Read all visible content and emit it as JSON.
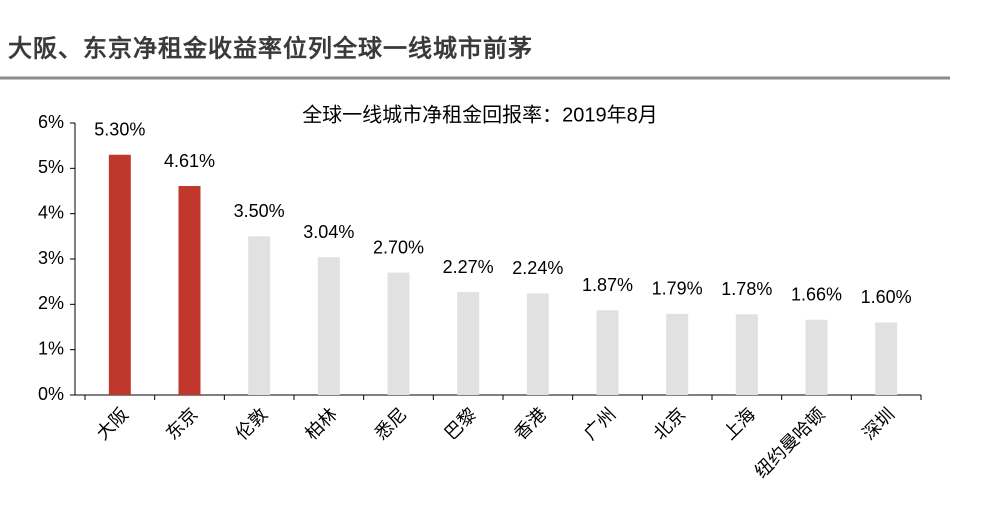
{
  "header": {
    "title": "大阪、东京净租金收益率位列全球一线城市前茅"
  },
  "chart_data": {
    "type": "bar",
    "title": "全球一线城市净租金回报率：2019年8月",
    "categories": [
      "大阪",
      "东京",
      "伦敦",
      "柏林",
      "悉尼",
      "巴黎",
      "香港",
      "广州",
      "北京",
      "上海",
      "纽约曼哈顿",
      "深圳"
    ],
    "values": [
      5.3,
      4.61,
      3.5,
      3.04,
      2.7,
      2.27,
      2.24,
      1.87,
      1.79,
      1.78,
      1.66,
      1.6
    ],
    "value_labels": [
      "5.30%",
      "4.61%",
      "3.50%",
      "3.04%",
      "2.70%",
      "2.27%",
      "2.24%",
      "1.87%",
      "1.79%",
      "1.78%",
      "1.66%",
      "1.60%"
    ],
    "colors": [
      "#c0372c",
      "#c0372c",
      "#e1e1e1",
      "#e1e1e1",
      "#e1e1e1",
      "#e1e1e1",
      "#e1e1e1",
      "#e1e1e1",
      "#e1e1e1",
      "#e1e1e1",
      "#e1e1e1",
      "#e1e1e1"
    ],
    "ylim": [
      0,
      6
    ],
    "yticks": [
      {
        "value": 0,
        "label": "0%"
      },
      {
        "value": 1,
        "label": "1%"
      },
      {
        "value": 2,
        "label": "2%"
      },
      {
        "value": 3,
        "label": "3%"
      },
      {
        "value": 4,
        "label": "4%"
      },
      {
        "value": 5,
        "label": "5%"
      },
      {
        "value": 6,
        "label": "6%"
      }
    ],
    "grid": false
  }
}
